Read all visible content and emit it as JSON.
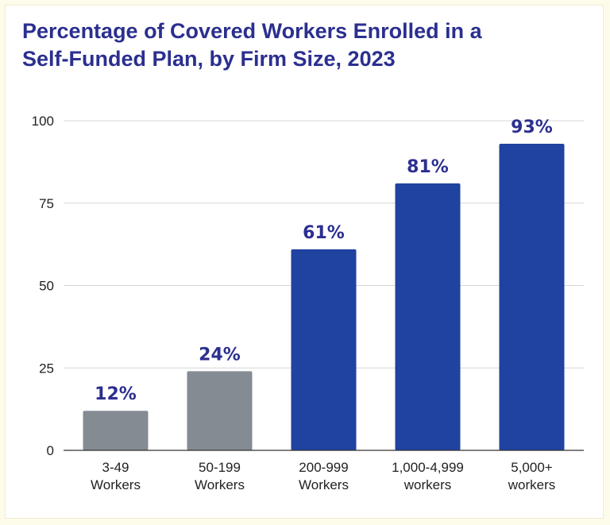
{
  "chart_data": {
    "type": "bar",
    "title": "Percentage of Covered Workers Enrolled in a Self-Funded Plan, by Firm Size, 2023",
    "title_lines": [
      "Percentage of Covered Workers Enrolled in a",
      "Self-Funded Plan, by Firm Size, 2023"
    ],
    "xlabel": "",
    "ylabel": "",
    "ylim": [
      0,
      100
    ],
    "y_ticks": [
      0,
      25,
      50,
      75,
      100
    ],
    "grid": true,
    "categories": [
      [
        "3-49",
        "Workers"
      ],
      [
        "50-199",
        "Workers"
      ],
      [
        "200-999",
        "Workers"
      ],
      [
        "1,000-4,999",
        "workers"
      ],
      [
        "5,000+",
        "workers"
      ]
    ],
    "values": [
      12,
      24,
      61,
      81,
      93
    ],
    "data_labels": [
      "12%",
      "24%",
      "61%",
      "81%",
      "93%"
    ],
    "bar_colors": [
      "#858b93",
      "#858b93",
      "#2042a0",
      "#2042a0",
      "#2042a0"
    ],
    "label_color": "#2b2f8f"
  }
}
